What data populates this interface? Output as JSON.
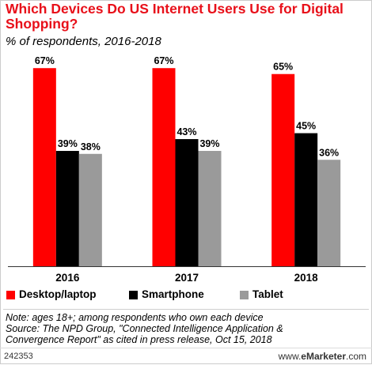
{
  "chart_data": {
    "type": "bar",
    "title": "Which Devices Do US Internet Users Use for Digital Shopping?",
    "subtitle": "% of respondents, 2016-2018",
    "categories": [
      "2016",
      "2017",
      "2018"
    ],
    "series": [
      {
        "name": "Desktop/laptop",
        "color": "#ff0000",
        "values": [
          67,
          67,
          65
        ],
        "labels": [
          "67%",
          "67%",
          "65%"
        ]
      },
      {
        "name": "Smartphone",
        "color": "#000000",
        "values": [
          39,
          43,
          45
        ],
        "labels": [
          "39%",
          "43%",
          "45%"
        ]
      },
      {
        "name": "Tablet",
        "color": "#9a9a9a",
        "values": [
          38,
          39,
          36
        ],
        "labels": [
          "38%",
          "39%",
          "36%"
        ]
      }
    ],
    "ylim": [
      0,
      70
    ]
  },
  "note_lines": [
    "Note: ages 18+; among respondents who own each device",
    "Source: The NPD Group, \"Connected Intelligence Application &",
    "Convergence Report\" as cited in press release, Oct 15, 2018"
  ],
  "footer": {
    "id": "242353",
    "brand_prefix": "www.",
    "brand_bold": "eMarketer",
    "brand_suffix": ".com"
  }
}
